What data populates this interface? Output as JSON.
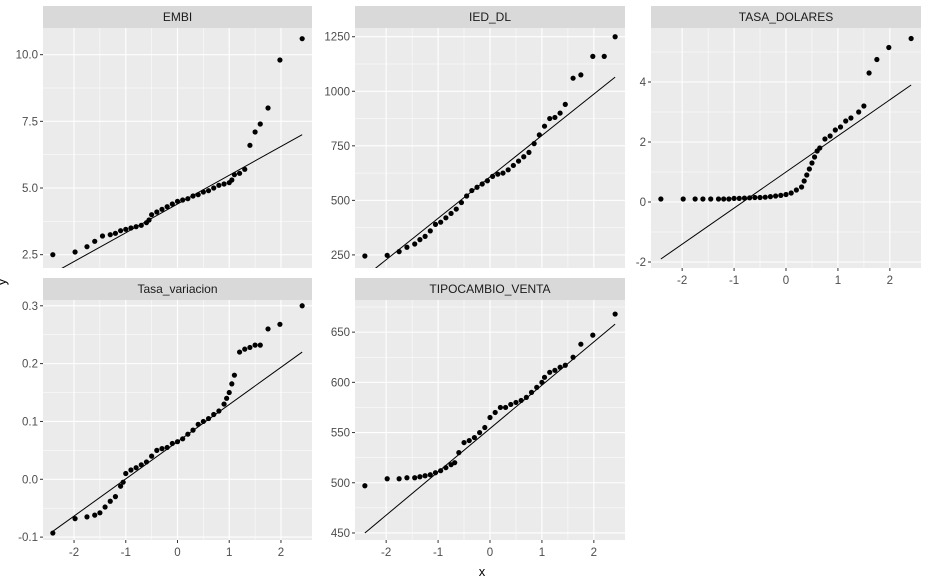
{
  "axis_titles": {
    "x": "x",
    "y": "y"
  },
  "chart_data": {
    "type": "scatter",
    "subtype": "qq-plot facets (stat_qq + stat_qq_line)",
    "xlabel": "x",
    "ylabel": "y",
    "grid": true,
    "shared_x": true,
    "xlim": [
      -2.6,
      2.6
    ],
    "x_ticks": [
      -2,
      -1,
      0,
      1,
      2
    ],
    "x_tick_labels": [
      "-2",
      "-1",
      "0",
      "1",
      "2"
    ],
    "panels": [
      {
        "title": "EMBI",
        "ylim": [
          2.0,
          11.0
        ],
        "y_ticks": [
          2.5,
          5.0,
          7.5,
          10.0
        ],
        "y_tick_labels": [
          "2.5",
          "5.0",
          "7.5",
          "10.0"
        ],
        "line": {
          "x": [
            -2.41,
            2.41
          ],
          "y": [
            1.8,
            7.0
          ]
        },
        "points": [
          [
            -2.41,
            2.5
          ],
          [
            -1.98,
            2.6
          ],
          [
            -1.75,
            2.8
          ],
          [
            -1.6,
            3.0
          ],
          [
            -1.45,
            3.2
          ],
          [
            -1.3,
            3.25
          ],
          [
            -1.2,
            3.3
          ],
          [
            -1.1,
            3.4
          ],
          [
            -1.0,
            3.45
          ],
          [
            -0.9,
            3.5
          ],
          [
            -0.8,
            3.55
          ],
          [
            -0.7,
            3.6
          ],
          [
            -0.6,
            3.7
          ],
          [
            -0.55,
            3.8
          ],
          [
            -0.5,
            4.0
          ],
          [
            -0.4,
            4.1
          ],
          [
            -0.3,
            4.2
          ],
          [
            -0.2,
            4.3
          ],
          [
            -0.1,
            4.4
          ],
          [
            0.0,
            4.5
          ],
          [
            0.1,
            4.55
          ],
          [
            0.2,
            4.6
          ],
          [
            0.3,
            4.7
          ],
          [
            0.4,
            4.75
          ],
          [
            0.5,
            4.85
          ],
          [
            0.6,
            4.9
          ],
          [
            0.7,
            5.0
          ],
          [
            0.8,
            5.1
          ],
          [
            0.9,
            5.15
          ],
          [
            1.0,
            5.2
          ],
          [
            1.05,
            5.3
          ],
          [
            1.1,
            5.5
          ],
          [
            1.2,
            5.55
          ],
          [
            1.3,
            5.7
          ],
          [
            1.4,
            6.6
          ],
          [
            1.5,
            7.1
          ],
          [
            1.6,
            7.4
          ],
          [
            1.75,
            8.0
          ],
          [
            1.98,
            9.8
          ],
          [
            2.41,
            10.6
          ]
        ]
      },
      {
        "title": "IED_DL",
        "ylim": [
          190,
          1290
        ],
        "y_ticks": [
          250,
          500,
          750,
          1000,
          1250
        ],
        "y_tick_labels": [
          "250",
          "500",
          "750",
          "1000",
          "1250"
        ],
        "line": {
          "x": [
            -2.41,
            2.41
          ],
          "y": [
            150,
            1065
          ]
        },
        "points": [
          [
            -2.41,
            245
          ],
          [
            -1.98,
            248
          ],
          [
            -1.75,
            265
          ],
          [
            -1.6,
            285
          ],
          [
            -1.45,
            300
          ],
          [
            -1.35,
            320
          ],
          [
            -1.25,
            335
          ],
          [
            -1.15,
            360
          ],
          [
            -1.05,
            390
          ],
          [
            -0.95,
            400
          ],
          [
            -0.85,
            420
          ],
          [
            -0.75,
            440
          ],
          [
            -0.65,
            460
          ],
          [
            -0.55,
            490
          ],
          [
            -0.45,
            520
          ],
          [
            -0.35,
            545
          ],
          [
            -0.25,
            560
          ],
          [
            -0.15,
            575
          ],
          [
            -0.05,
            590
          ],
          [
            0.05,
            610
          ],
          [
            0.15,
            620
          ],
          [
            0.25,
            625
          ],
          [
            0.35,
            640
          ],
          [
            0.45,
            660
          ],
          [
            0.55,
            680
          ],
          [
            0.65,
            700
          ],
          [
            0.75,
            720
          ],
          [
            0.85,
            760
          ],
          [
            0.95,
            800
          ],
          [
            1.05,
            840
          ],
          [
            1.15,
            875
          ],
          [
            1.25,
            880
          ],
          [
            1.35,
            900
          ],
          [
            1.45,
            940
          ],
          [
            1.6,
            1060
          ],
          [
            1.75,
            1075
          ],
          [
            1.98,
            1160
          ],
          [
            2.2,
            1160
          ],
          [
            2.41,
            1250
          ]
        ]
      },
      {
        "title": "TASA_DOLARES",
        "ylim": [
          -2.2,
          5.8
        ],
        "y_ticks": [
          -2,
          0,
          2,
          4
        ],
        "y_tick_labels": [
          "-2",
          "0",
          "2",
          "4"
        ],
        "line": {
          "x": [
            -2.41,
            2.41
          ],
          "y": [
            -1.9,
            3.9
          ]
        },
        "points": [
          [
            -2.41,
            0.1
          ],
          [
            -1.98,
            0.1
          ],
          [
            -1.75,
            0.1
          ],
          [
            -1.6,
            0.1
          ],
          [
            -1.45,
            0.1
          ],
          [
            -1.3,
            0.1
          ],
          [
            -1.2,
            0.1
          ],
          [
            -1.1,
            0.1
          ],
          [
            -1.0,
            0.12
          ],
          [
            -0.9,
            0.12
          ],
          [
            -0.8,
            0.13
          ],
          [
            -0.7,
            0.14
          ],
          [
            -0.6,
            0.15
          ],
          [
            -0.5,
            0.15
          ],
          [
            -0.4,
            0.16
          ],
          [
            -0.3,
            0.18
          ],
          [
            -0.2,
            0.2
          ],
          [
            -0.1,
            0.22
          ],
          [
            0.0,
            0.25
          ],
          [
            0.1,
            0.3
          ],
          [
            0.2,
            0.4
          ],
          [
            0.3,
            0.5
          ],
          [
            0.35,
            0.7
          ],
          [
            0.4,
            0.9
          ],
          [
            0.45,
            1.1
          ],
          [
            0.5,
            1.3
          ],
          [
            0.55,
            1.5
          ],
          [
            0.6,
            1.7
          ],
          [
            0.65,
            1.8
          ],
          [
            0.75,
            2.1
          ],
          [
            0.85,
            2.2
          ],
          [
            0.95,
            2.4
          ],
          [
            1.05,
            2.5
          ],
          [
            1.15,
            2.7
          ],
          [
            1.25,
            2.8
          ],
          [
            1.4,
            3.0
          ],
          [
            1.5,
            3.2
          ],
          [
            1.6,
            4.3
          ],
          [
            1.75,
            4.75
          ],
          [
            1.98,
            5.15
          ],
          [
            2.41,
            5.45
          ]
        ]
      },
      {
        "title": "Tasa_variacion",
        "ylim": [
          -0.105,
          0.31
        ],
        "y_ticks": [
          -0.1,
          0.0,
          0.1,
          0.2,
          0.3
        ],
        "y_tick_labels": [
          "-0.1",
          "0.0",
          "0.1",
          "0.2",
          "0.3"
        ],
        "line": {
          "x": [
            -2.41,
            2.41
          ],
          "y": [
            -0.09,
            0.22
          ]
        },
        "points": [
          [
            -2.41,
            -0.093
          ],
          [
            -1.98,
            -0.068
          ],
          [
            -1.75,
            -0.065
          ],
          [
            -1.6,
            -0.062
          ],
          [
            -1.5,
            -0.058
          ],
          [
            -1.4,
            -0.048
          ],
          [
            -1.3,
            -0.038
          ],
          [
            -1.2,
            -0.03
          ],
          [
            -1.1,
            -0.012
          ],
          [
            -1.05,
            -0.005
          ],
          [
            -1.0,
            0.01
          ],
          [
            -0.9,
            0.016
          ],
          [
            -0.8,
            0.02
          ],
          [
            -0.7,
            0.025
          ],
          [
            -0.6,
            0.03
          ],
          [
            -0.5,
            0.04
          ],
          [
            -0.4,
            0.05
          ],
          [
            -0.3,
            0.053
          ],
          [
            -0.2,
            0.055
          ],
          [
            -0.1,
            0.062
          ],
          [
            0.0,
            0.065
          ],
          [
            0.1,
            0.07
          ],
          [
            0.2,
            0.078
          ],
          [
            0.3,
            0.085
          ],
          [
            0.4,
            0.095
          ],
          [
            0.5,
            0.1
          ],
          [
            0.6,
            0.105
          ],
          [
            0.7,
            0.112
          ],
          [
            0.8,
            0.118
          ],
          [
            0.9,
            0.13
          ],
          [
            0.95,
            0.14
          ],
          [
            1.0,
            0.15
          ],
          [
            1.05,
            0.165
          ],
          [
            1.1,
            0.18
          ],
          [
            1.2,
            0.22
          ],
          [
            1.3,
            0.225
          ],
          [
            1.4,
            0.228
          ],
          [
            1.5,
            0.232
          ],
          [
            1.6,
            0.232
          ],
          [
            1.75,
            0.26
          ],
          [
            1.98,
            0.268
          ],
          [
            2.41,
            0.3
          ]
        ]
      },
      {
        "title": "TIPOCAMBIO_VENTA",
        "ylim": [
          443,
          682
        ],
        "y_ticks": [
          450,
          500,
          550,
          600,
          650
        ],
        "y_tick_labels": [
          "450",
          "500",
          "550",
          "600",
          "650"
        ],
        "line": {
          "x": [
            -2.41,
            2.41
          ],
          "y": [
            450,
            658
          ]
        },
        "points": [
          [
            -2.41,
            497
          ],
          [
            -1.98,
            504
          ],
          [
            -1.75,
            504
          ],
          [
            -1.6,
            505
          ],
          [
            -1.45,
            505
          ],
          [
            -1.35,
            506
          ],
          [
            -1.25,
            507
          ],
          [
            -1.15,
            508
          ],
          [
            -1.05,
            510
          ],
          [
            -0.95,
            512
          ],
          [
            -0.85,
            515
          ],
          [
            -0.75,
            518
          ],
          [
            -0.68,
            520
          ],
          [
            -0.6,
            530
          ],
          [
            -0.5,
            540
          ],
          [
            -0.4,
            542
          ],
          [
            -0.3,
            545
          ],
          [
            -0.2,
            550
          ],
          [
            -0.1,
            555
          ],
          [
            0.0,
            565
          ],
          [
            0.1,
            570
          ],
          [
            0.2,
            575
          ],
          [
            0.3,
            575
          ],
          [
            0.4,
            578
          ],
          [
            0.5,
            580
          ],
          [
            0.6,
            582
          ],
          [
            0.7,
            585
          ],
          [
            0.8,
            590
          ],
          [
            0.9,
            595
          ],
          [
            1.0,
            600
          ],
          [
            1.05,
            605
          ],
          [
            1.15,
            610
          ],
          [
            1.25,
            612
          ],
          [
            1.35,
            615
          ],
          [
            1.45,
            617
          ],
          [
            1.6,
            625
          ],
          [
            1.75,
            638
          ],
          [
            1.98,
            647
          ],
          [
            2.41,
            668
          ]
        ]
      }
    ]
  }
}
